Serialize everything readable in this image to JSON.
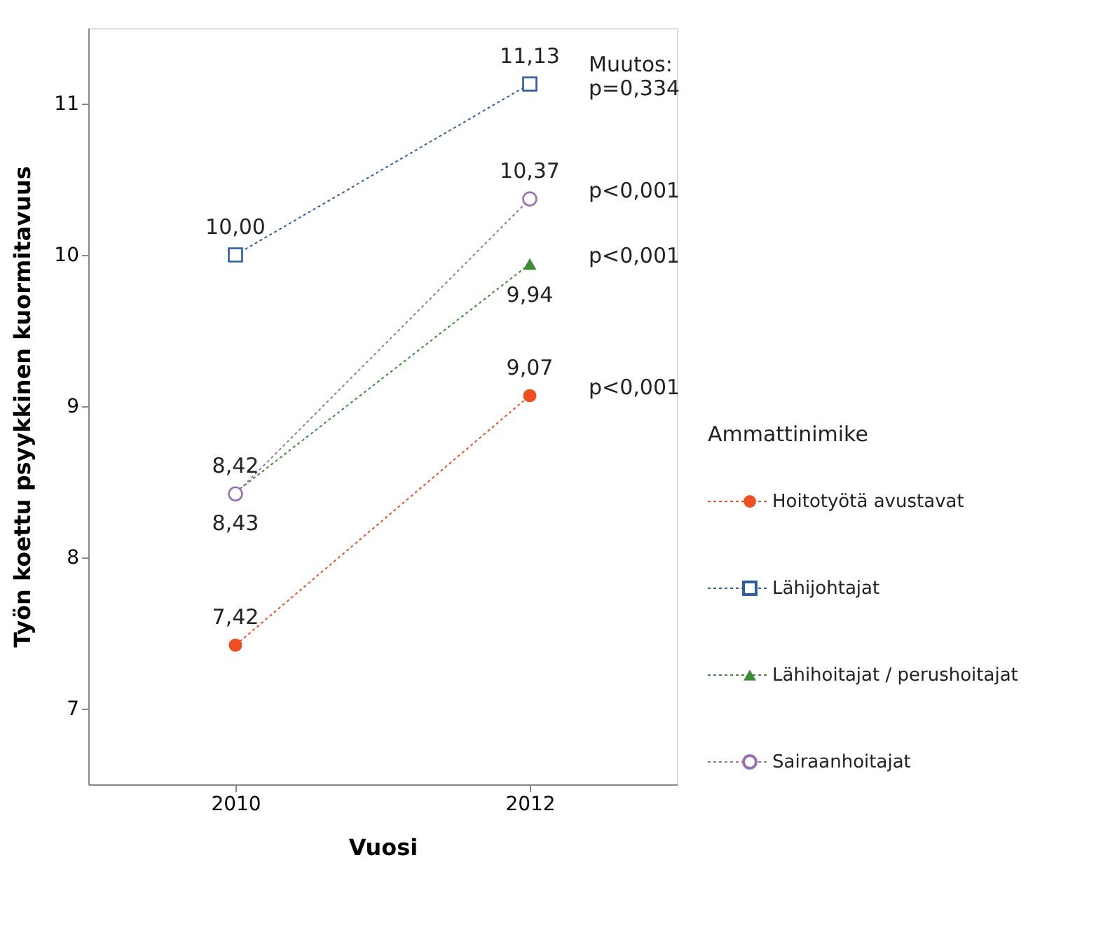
{
  "chart_data": {
    "type": "line",
    "xlabel": "Vuosi",
    "ylabel": "Työn koettu psyykkinen kuormitavuus",
    "legend_title": "Ammattinimike",
    "x": [
      2010,
      2012
    ],
    "xlim": [
      2009,
      2013
    ],
    "xticks": [
      2010,
      2012
    ],
    "ylim": [
      6.5,
      11.5
    ],
    "yticks": [
      7,
      8,
      9,
      10,
      11
    ],
    "grid": false,
    "legend": "right",
    "line_style": "dotted",
    "series": [
      {
        "name": "Hoitotyötä avustavat",
        "color": "#f04e23",
        "marker": "circle",
        "values": [
          7.42,
          9.07
        ],
        "value_labels": [
          "7,42",
          "9,07"
        ]
      },
      {
        "name": "Lähijohtajat",
        "color": "#2e5ca8",
        "marker": "square",
        "values": [
          10.0,
          11.13
        ],
        "value_labels": [
          "10,00",
          "11,13"
        ]
      },
      {
        "name": "Lähihoitajat / perushoitajat",
        "color": "#3d8b37",
        "marker": "triangle",
        "values": [
          8.43,
          9.94
        ],
        "value_labels": [
          "8,43",
          "9,94"
        ]
      },
      {
        "name": "Sairaanhoitajat",
        "color": "#9b72b0",
        "marker": "circle",
        "values": [
          8.42,
          10.37
        ],
        "value_labels": [
          "8,42",
          "10,37"
        ]
      }
    ],
    "annotations": [
      "Muutos:\np=0,334",
      "p<0,001",
      "p<0,001",
      "p<0,001"
    ]
  }
}
